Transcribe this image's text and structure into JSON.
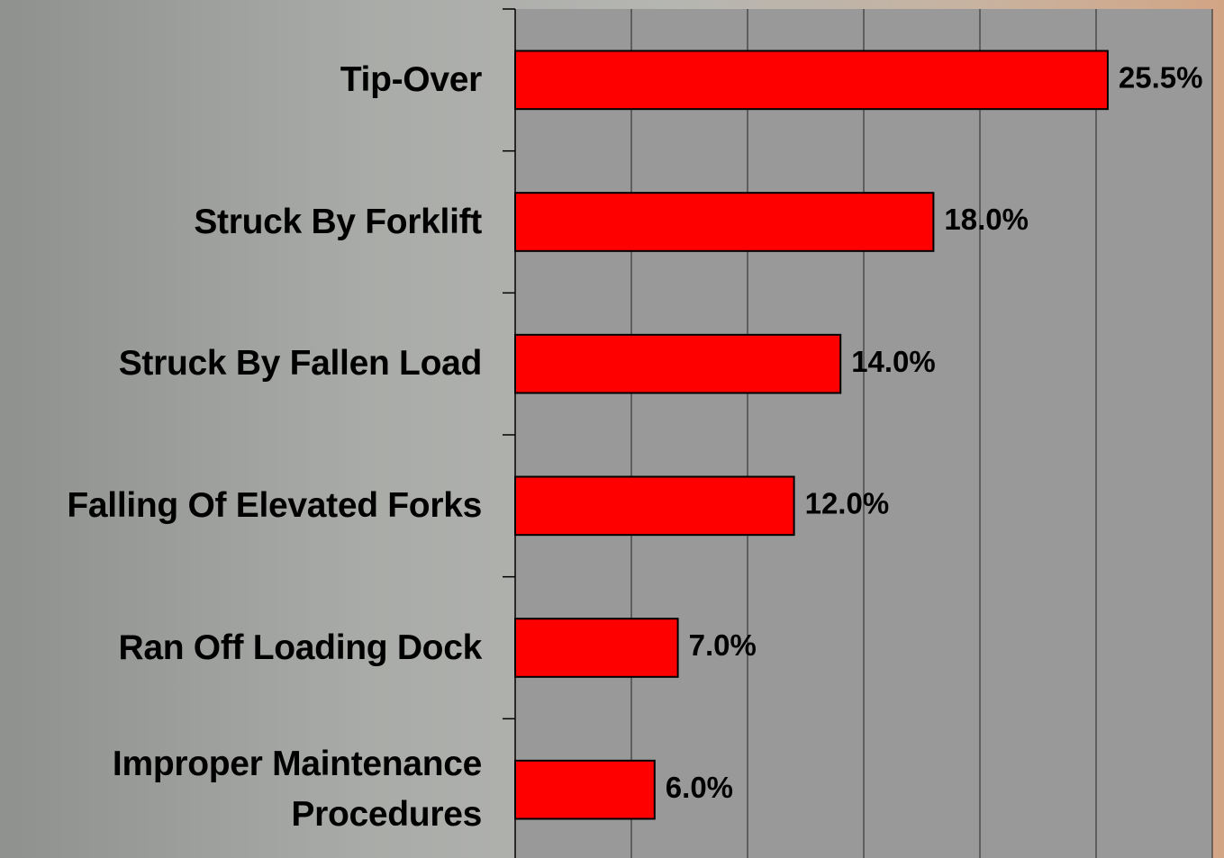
{
  "chart_data": {
    "type": "hbar",
    "categories": [
      "Tip-Over",
      "Struck By Forklift",
      "Struck By Fallen Load",
      "Falling Of Elevated Forks",
      "Ran Off Loading Dock",
      "Improper Maintenance\nProcedures"
    ],
    "values": [
      25.5,
      18.0,
      14.0,
      12.0,
      7.0,
      6.0
    ],
    "value_labels": [
      "25.5%",
      "18.0%",
      "14.0%",
      "12.0%",
      "7.0%",
      "6.0%"
    ],
    "color": "#ff0000",
    "xlim": [
      0,
      30
    ],
    "xticks": [
      0,
      5,
      10,
      15,
      20,
      25,
      30
    ],
    "grid": true
  }
}
